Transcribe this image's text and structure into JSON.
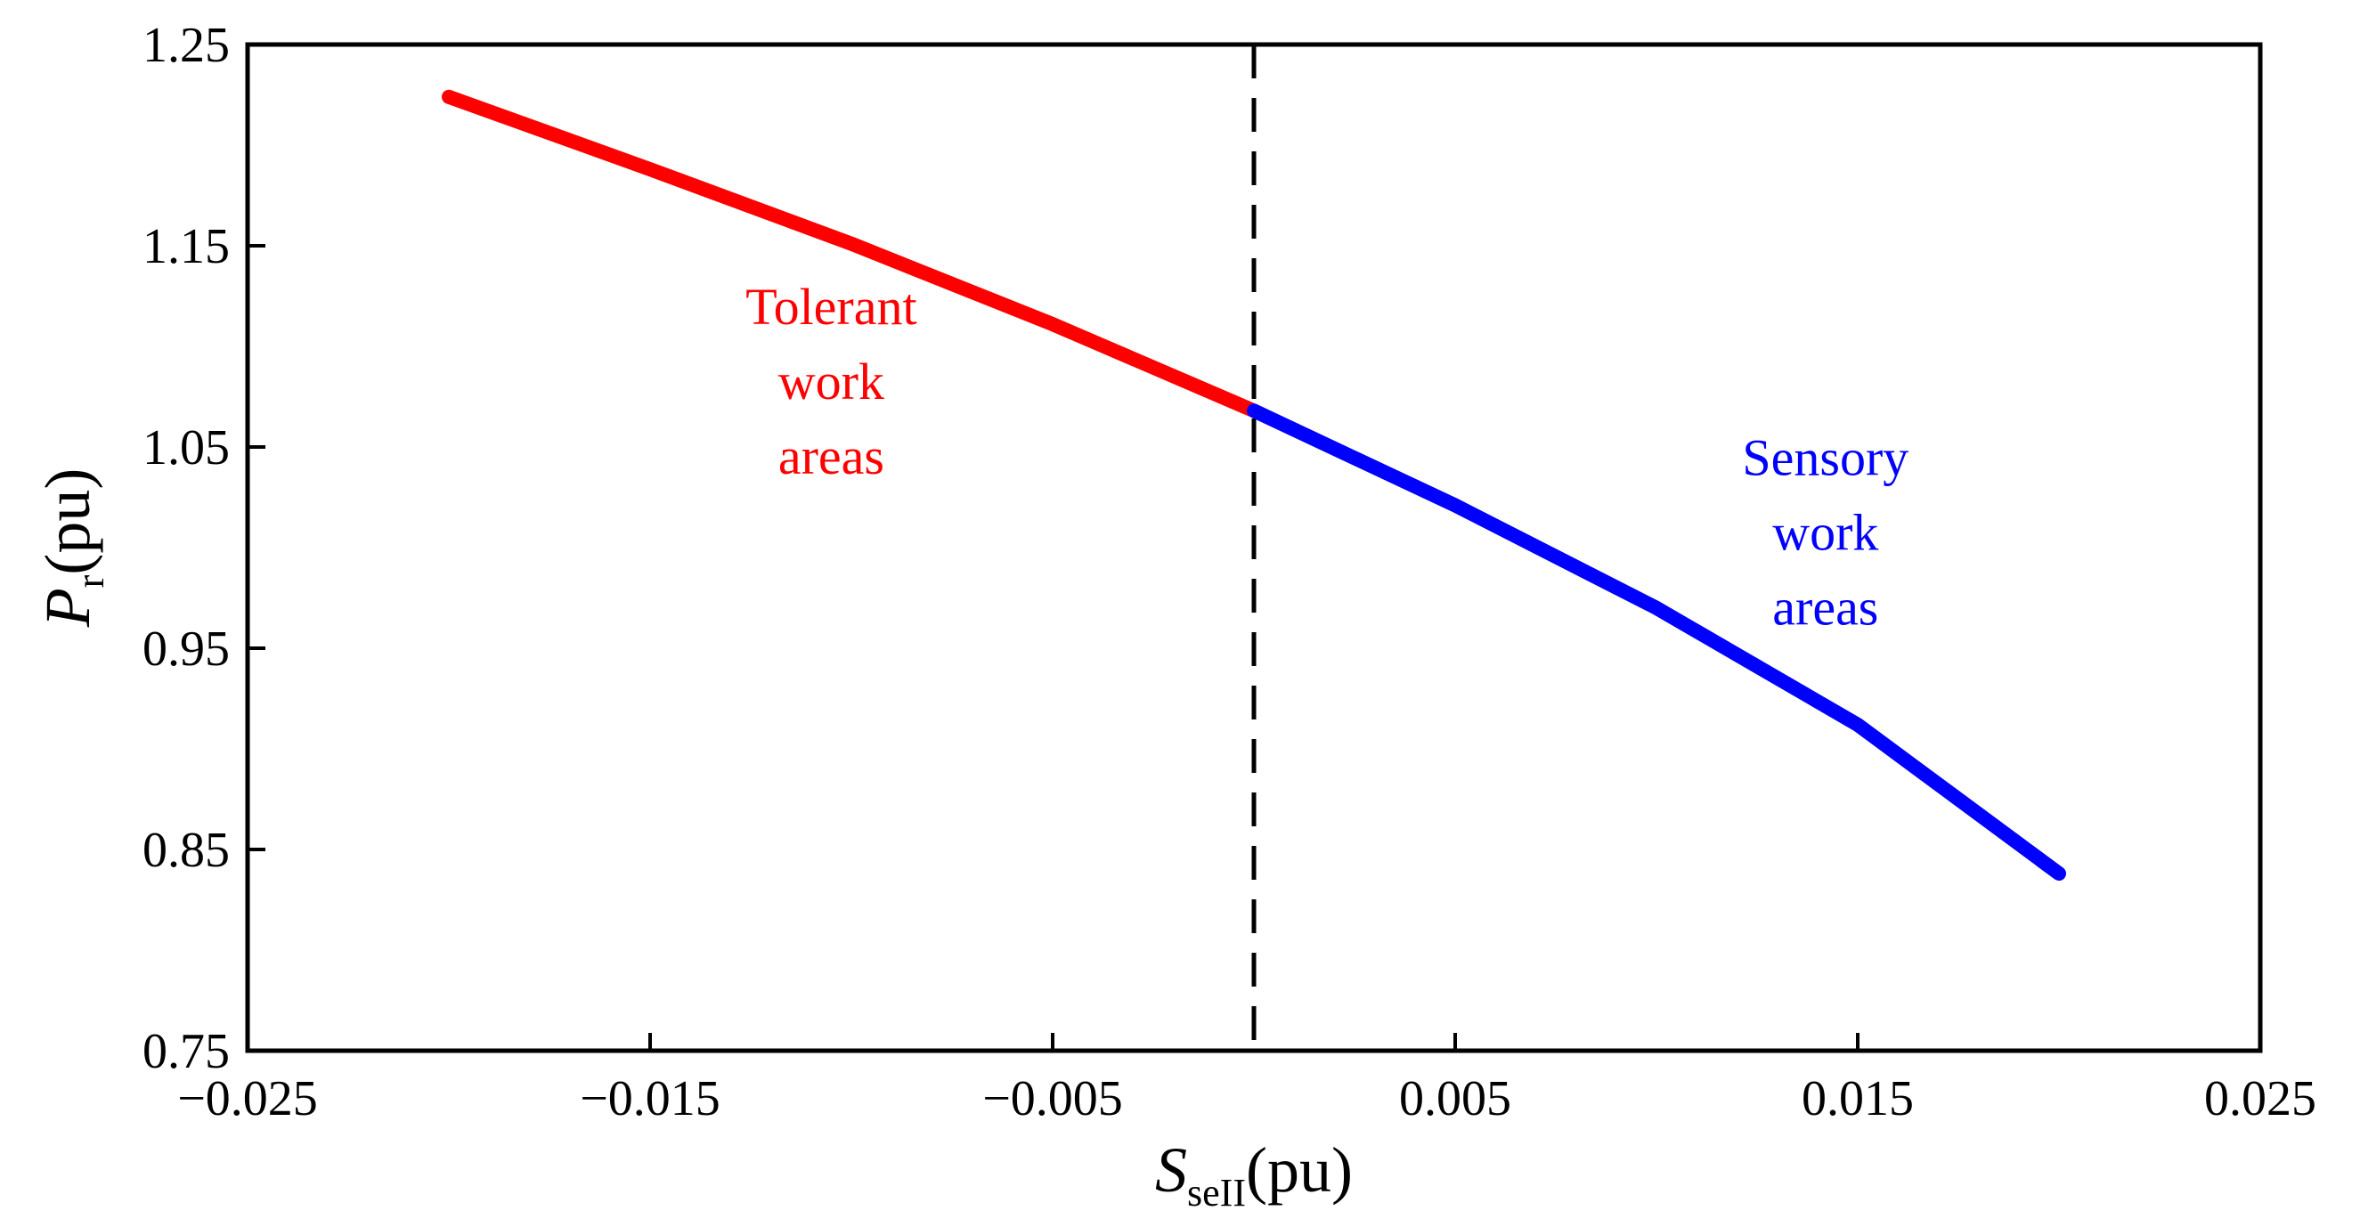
{
  "chart_data": {
    "type": "line",
    "xlabel": {
      "main": "S",
      "sub": "seII",
      "unit": "(pu)"
    },
    "ylabel": {
      "main": "P",
      "sub": "r",
      "unit": "(pu)"
    },
    "xlim": [
      -0.025,
      0.025
    ],
    "ylim": [
      0.75,
      1.25
    ],
    "xticks": [
      -0.025,
      -0.015,
      -0.005,
      0.005,
      0.015,
      0.025
    ],
    "xtick_labels": [
      "−0.025",
      "−0.015",
      "−0.005",
      "0.005",
      "0.015",
      "0.025"
    ],
    "yticks": [
      0.75,
      0.85,
      0.95,
      1.05,
      1.15,
      1.25
    ],
    "ytick_labels": [
      "0.75",
      "0.85",
      "0.95",
      "1.05",
      "1.15",
      "1.25"
    ],
    "boundary_x": 0,
    "series": [
      {
        "name": "tolerant",
        "color": "#ff0000",
        "x": [
          -0.02,
          -0.015,
          -0.01,
          -0.005,
          0
        ],
        "y": [
          1.224,
          1.188,
          1.151,
          1.111,
          1.068
        ]
      },
      {
        "name": "sensory",
        "color": "#0000ff",
        "x": [
          0,
          0.005,
          0.01,
          0.015,
          0.02
        ],
        "y": [
          1.068,
          1.021,
          0.97,
          0.912,
          0.838
        ]
      }
    ],
    "annotations": [
      {
        "id": "tolerant",
        "lines": [
          "Tolerant",
          "work",
          "areas"
        ],
        "color": "#ff0000",
        "x": -0.0105,
        "y": 1.111
      },
      {
        "id": "sensory",
        "lines": [
          "Sensory",
          "work",
          "areas"
        ],
        "color": "#0000ff",
        "x": 0.0142,
        "y": 1.036
      }
    ]
  }
}
